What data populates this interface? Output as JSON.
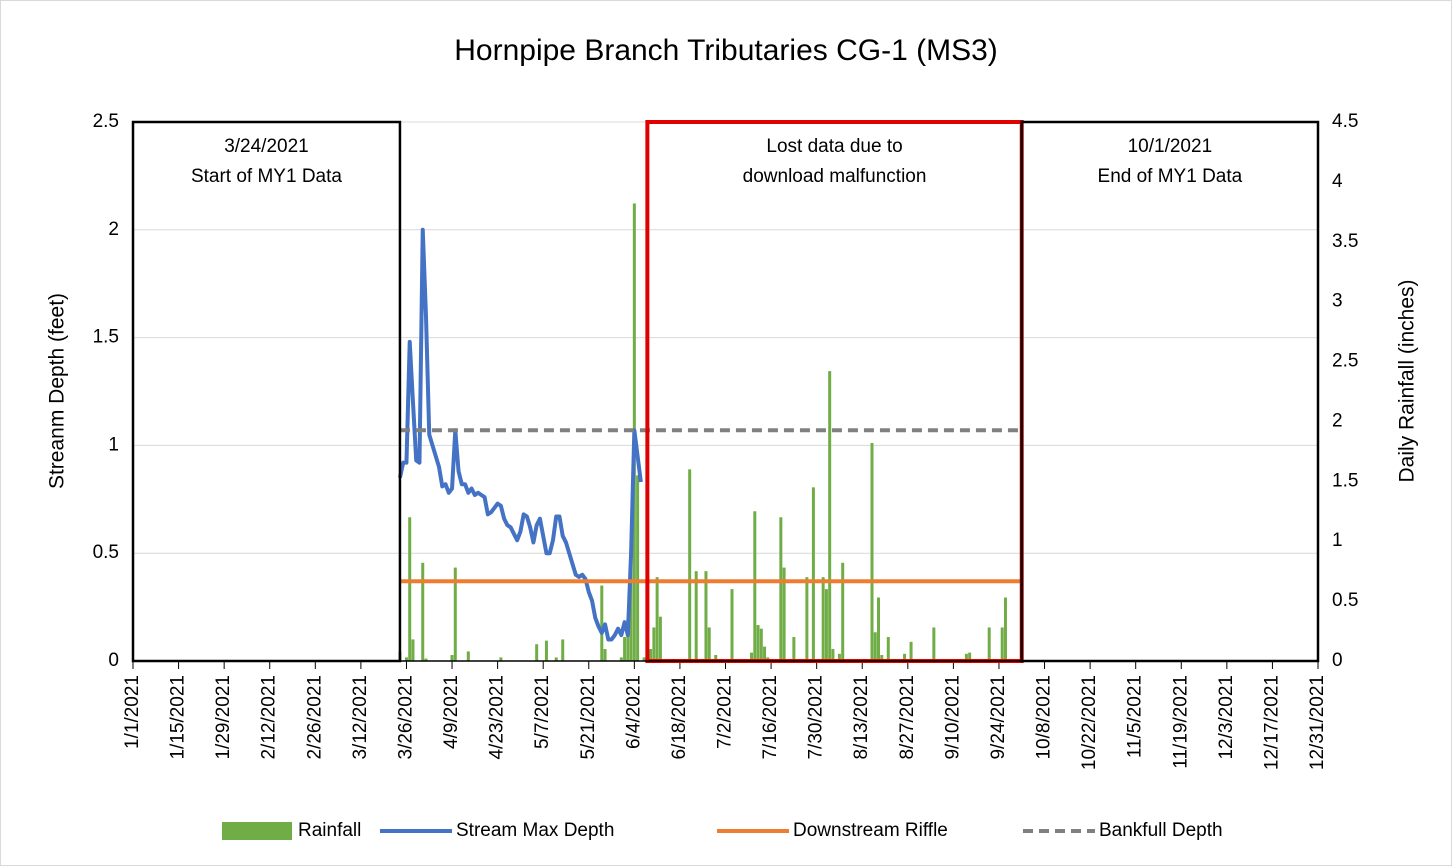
{
  "chart_data": {
    "type": "combo",
    "title": "Hornpipe Branch Tributaries CG-1 (MS3)",
    "ylabel": "Streanm Depth (feet)",
    "y2label": "Daily Rainfall (inches)",
    "xlim": [
      "2021-01-01",
      "2021-12-31"
    ],
    "xticks": [
      {
        "value": "2021-01-01",
        "label": "1/1/2021"
      },
      {
        "value": "2021-01-15",
        "label": "1/15/2021"
      },
      {
        "value": "2021-01-29",
        "label": "1/29/2021"
      },
      {
        "value": "2021-02-12",
        "label": "2/12/2021"
      },
      {
        "value": "2021-02-26",
        "label": "2/26/2021"
      },
      {
        "value": "2021-03-12",
        "label": "3/12/2021"
      },
      {
        "value": "2021-03-26",
        "label": "3/26/2021"
      },
      {
        "value": "2021-04-09",
        "label": "4/9/2021"
      },
      {
        "value": "2021-04-23",
        "label": "4/23/2021"
      },
      {
        "value": "2021-05-07",
        "label": "5/7/2021"
      },
      {
        "value": "2021-05-21",
        "label": "5/21/2021"
      },
      {
        "value": "2021-06-04",
        "label": "6/4/2021"
      },
      {
        "value": "2021-06-18",
        "label": "6/18/2021"
      },
      {
        "value": "2021-07-02",
        "label": "7/2/2021"
      },
      {
        "value": "2021-07-16",
        "label": "7/16/2021"
      },
      {
        "value": "2021-07-30",
        "label": "7/30/2021"
      },
      {
        "value": "2021-08-13",
        "label": "8/13/2021"
      },
      {
        "value": "2021-08-27",
        "label": "8/27/2021"
      },
      {
        "value": "2021-09-10",
        "label": "9/10/2021"
      },
      {
        "value": "2021-09-24",
        "label": "9/24/2021"
      },
      {
        "value": "2021-10-08",
        "label": "10/8/2021"
      },
      {
        "value": "2021-10-22",
        "label": "10/22/2021"
      },
      {
        "value": "2021-11-05",
        "label": "11/5/2021"
      },
      {
        "value": "2021-11-19",
        "label": "11/19/2021"
      },
      {
        "value": "2021-12-03",
        "label": "12/3/2021"
      },
      {
        "value": "2021-12-17",
        "label": "12/17/2021"
      },
      {
        "value": "2021-12-31",
        "label": "12/31/2021"
      }
    ],
    "ylim": [
      0,
      2.5
    ],
    "yticks": [
      0,
      0.5,
      1,
      1.5,
      2,
      2.5
    ],
    "y2lim": [
      0,
      4.5
    ],
    "y2ticks": [
      0,
      0.5,
      1,
      1.5,
      2,
      2.5,
      3,
      3.5,
      4,
      4.5
    ],
    "grid": true,
    "legend": "bottom",
    "series": [
      {
        "name": "Rainfall",
        "kind": "bar",
        "axis": "y2",
        "color": "#70ad47",
        "x": [
          "2021-03-24",
          "2021-03-26",
          "2021-03-27",
          "2021-03-28",
          "2021-03-31",
          "2021-04-01",
          "2021-04-09",
          "2021-04-10",
          "2021-04-14",
          "2021-04-24",
          "2021-05-05",
          "2021-05-08",
          "2021-05-11",
          "2021-05-13",
          "2021-05-25",
          "2021-05-26",
          "2021-05-31",
          "2021-06-01",
          "2021-06-02",
          "2021-06-03",
          "2021-06-04",
          "2021-06-05",
          "2021-06-07",
          "2021-06-09",
          "2021-06-10",
          "2021-06-11",
          "2021-06-12",
          "2021-06-21",
          "2021-06-23",
          "2021-06-26",
          "2021-06-27",
          "2021-06-29",
          "2021-07-04",
          "2021-07-10",
          "2021-07-11",
          "2021-07-12",
          "2021-07-13",
          "2021-07-14",
          "2021-07-15",
          "2021-07-19",
          "2021-07-20",
          "2021-07-23",
          "2021-07-27",
          "2021-07-29",
          "2021-08-01",
          "2021-08-02",
          "2021-08-03",
          "2021-08-04",
          "2021-08-06",
          "2021-08-07",
          "2021-08-16",
          "2021-08-17",
          "2021-08-18",
          "2021-08-19",
          "2021-08-21",
          "2021-08-26",
          "2021-08-28",
          "2021-09-04",
          "2021-09-14",
          "2021-09-15",
          "2021-09-21",
          "2021-09-25",
          "2021-09-26",
          "2021-10-01"
        ],
        "values": [
          0.08,
          0.03,
          1.2,
          0.18,
          0.82,
          0.02,
          0.05,
          0.78,
          0.08,
          0.03,
          0.14,
          0.17,
          0.03,
          0.18,
          0.63,
          0.1,
          0.03,
          0.2,
          0.35,
          0.88,
          3.82,
          1.55,
          0.03,
          0.1,
          0.28,
          0.7,
          0.37,
          1.6,
          0.75,
          0.75,
          0.28,
          0.05,
          0.6,
          0.07,
          1.25,
          0.3,
          0.27,
          0.12,
          0.03,
          1.2,
          0.78,
          0.2,
          0.7,
          1.45,
          0.7,
          0.6,
          2.42,
          0.1,
          0.06,
          0.82,
          1.82,
          0.24,
          0.53,
          0.05,
          0.2,
          0.06,
          0.16,
          0.28,
          0.06,
          0.07,
          0.28,
          0.28,
          0.53,
          0.18
        ]
      },
      {
        "name": "Stream Max Depth",
        "kind": "line",
        "color": "#4472c4",
        "x": [
          "2021-03-24",
          "2021-03-25",
          "2021-03-26",
          "2021-03-27",
          "2021-03-28",
          "2021-03-29",
          "2021-03-30",
          "2021-03-31",
          "2021-04-01",
          "2021-04-02",
          "2021-04-03",
          "2021-04-04",
          "2021-04-05",
          "2021-04-06",
          "2021-04-07",
          "2021-04-08",
          "2021-04-09",
          "2021-04-10",
          "2021-04-11",
          "2021-04-12",
          "2021-04-13",
          "2021-04-14",
          "2021-04-15",
          "2021-04-16",
          "2021-04-17",
          "2021-04-18",
          "2021-04-19",
          "2021-04-20",
          "2021-04-21",
          "2021-04-22",
          "2021-04-23",
          "2021-04-24",
          "2021-04-25",
          "2021-04-26",
          "2021-04-27",
          "2021-04-28",
          "2021-04-29",
          "2021-04-30",
          "2021-05-01",
          "2021-05-02",
          "2021-05-03",
          "2021-05-04",
          "2021-05-05",
          "2021-05-06",
          "2021-05-07",
          "2021-05-08",
          "2021-05-09",
          "2021-05-10",
          "2021-05-11",
          "2021-05-12",
          "2021-05-13",
          "2021-05-14",
          "2021-05-15",
          "2021-05-16",
          "2021-05-17",
          "2021-05-18",
          "2021-05-19",
          "2021-05-20",
          "2021-05-21",
          "2021-05-22",
          "2021-05-23",
          "2021-05-24",
          "2021-05-25",
          "2021-05-26",
          "2021-05-27",
          "2021-05-28",
          "2021-05-29",
          "2021-05-30",
          "2021-05-31",
          "2021-06-01",
          "2021-06-02",
          "2021-06-03",
          "2021-06-04",
          "2021-06-05",
          "2021-06-06"
        ],
        "values": [
          0.85,
          0.92,
          0.92,
          1.48,
          1.2,
          0.93,
          0.92,
          2.0,
          1.6,
          1.05,
          1.0,
          0.95,
          0.9,
          0.81,
          0.82,
          0.78,
          0.8,
          1.07,
          0.88,
          0.82,
          0.82,
          0.78,
          0.8,
          0.77,
          0.78,
          0.77,
          0.76,
          0.68,
          0.69,
          0.71,
          0.73,
          0.72,
          0.66,
          0.63,
          0.62,
          0.59,
          0.56,
          0.6,
          0.68,
          0.67,
          0.62,
          0.55,
          0.63,
          0.66,
          0.58,
          0.5,
          0.5,
          0.56,
          0.67,
          0.67,
          0.58,
          0.55,
          0.5,
          0.45,
          0.4,
          0.39,
          0.4,
          0.38,
          0.32,
          0.28,
          0.2,
          0.16,
          0.13,
          0.17,
          0.1,
          0.1,
          0.12,
          0.15,
          0.12,
          0.18,
          0.12,
          0.5,
          1.07,
          0.95,
          0.83
        ]
      },
      {
        "name": "Downstream Riffle",
        "kind": "line",
        "color": "#ed7d31",
        "x": [
          "2021-03-24",
          "2021-10-01"
        ],
        "values": [
          0.37,
          0.37
        ]
      },
      {
        "name": "Bankfull Depth",
        "kind": "dashed",
        "color": "#808080",
        "x": [
          "2021-03-24",
          "2021-10-01"
        ],
        "values": [
          1.07,
          1.07
        ]
      }
    ],
    "annotations": [
      {
        "start": "2021-01-01",
        "end": "2021-03-24",
        "color": "#000000",
        "lines": [
          "3/24/2021",
          "Start of MY1 Data"
        ]
      },
      {
        "start": "2021-06-08",
        "end": "2021-10-01",
        "color": "#e00000",
        "lines": [
          "Lost data due to",
          "download malfunction"
        ]
      },
      {
        "start": "2021-10-01",
        "end": "2021-12-31",
        "color": "#000000",
        "lines": [
          "10/1/2021",
          "End of MY1 Data"
        ]
      }
    ]
  }
}
